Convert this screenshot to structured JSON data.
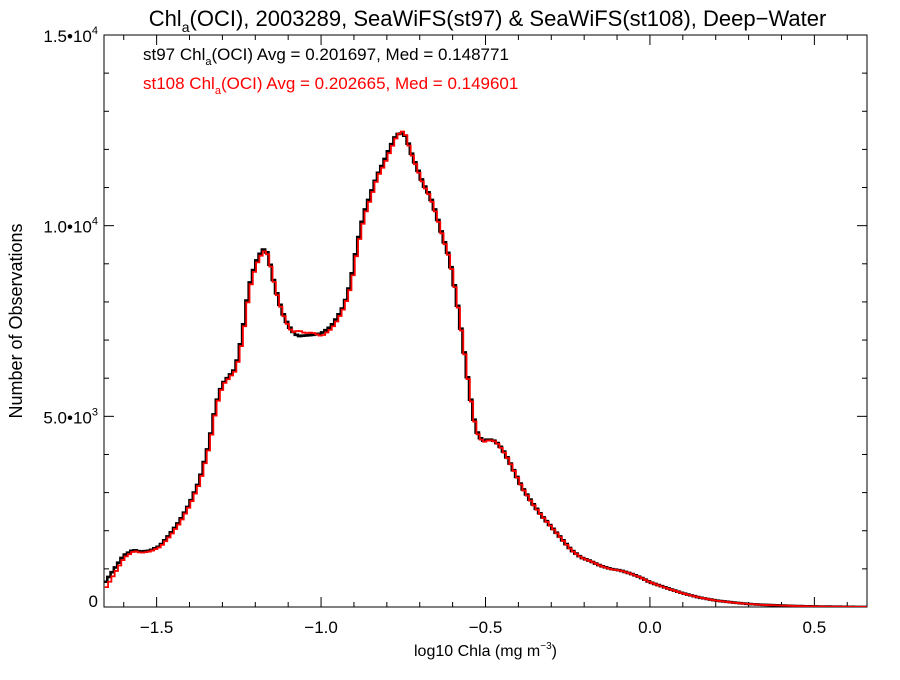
{
  "chart_data": {
    "type": "line",
    "style": "step histogram",
    "title": {
      "prefix": "Chl",
      "subscript": "a",
      "suffix": "(OCI), 2003289, SeaWiFS(st97) & SeaWiFS(st108), Deep−Water"
    },
    "xlabel": {
      "prefix": "log10 Chla (mg m",
      "superscript": "−3",
      "suffix": ")"
    },
    "ylabel": "Number of Observations",
    "xlim": [
      -1.66,
      0.66
    ],
    "ylim": [
      0,
      15000
    ],
    "x_ticks": [
      {
        "value": -1.5,
        "label": "−1.5"
      },
      {
        "value": -1.0,
        "label": "−1.0"
      },
      {
        "value": -0.5,
        "label": "−0.5"
      },
      {
        "value": 0.0,
        "label": "0.0"
      },
      {
        "value": 0.5,
        "label": "0.5"
      }
    ],
    "y_ticks": [
      {
        "value": 0,
        "mantissa": "0",
        "exponent": ""
      },
      {
        "value": 5000,
        "mantissa": "5.0•10",
        "exponent": "3"
      },
      {
        "value": 10000,
        "mantissa": "1.0•10",
        "exponent": "4"
      },
      {
        "value": 15000,
        "mantissa": "1.5•10",
        "exponent": "4"
      }
    ],
    "x_minor_step": 0.1,
    "y_minor_step": 1000,
    "grid": false,
    "legend_placement": "top-left",
    "annotations": [
      {
        "color": "#000000",
        "prefix": "st97 Chl",
        "subscript": "a",
        "suffix": "(OCI) Avg = 0.201697, Med = 0.148771"
      },
      {
        "color": "#ff0000",
        "prefix": "st108 Chl",
        "subscript": "a",
        "suffix": "(OCI) Avg = 0.202665, Med = 0.149601"
      }
    ],
    "bin_width": 0.01,
    "x": [
      -1.66,
      -1.6,
      -1.57,
      -1.55,
      -1.52,
      -1.49,
      -1.46,
      -1.43,
      -1.4,
      -1.37,
      -1.34,
      -1.32,
      -1.3,
      -1.28,
      -1.26,
      -1.24,
      -1.22,
      -1.2,
      -1.18,
      -1.17,
      -1.16,
      -1.15,
      -1.13,
      -1.11,
      -1.09,
      -1.07,
      -1.05,
      -1.03,
      -1.0,
      -0.97,
      -0.95,
      -0.93,
      -0.91,
      -0.89,
      -0.87,
      -0.85,
      -0.83,
      -0.81,
      -0.79,
      -0.77,
      -0.75,
      -0.74,
      -0.73,
      -0.71,
      -0.69,
      -0.67,
      -0.65,
      -0.63,
      -0.61,
      -0.59,
      -0.57,
      -0.55,
      -0.53,
      -0.51,
      -0.49,
      -0.47,
      -0.45,
      -0.43,
      -0.41,
      -0.39,
      -0.36,
      -0.33,
      -0.3,
      -0.27,
      -0.24,
      -0.21,
      -0.18,
      -0.15,
      -0.12,
      -0.09,
      -0.06,
      -0.03,
      0.0,
      0.05,
      0.1,
      0.15,
      0.2,
      0.25,
      0.3,
      0.35,
      0.4,
      0.45,
      0.5,
      0.55,
      0.6,
      0.66
    ],
    "series": [
      {
        "name": "st97",
        "color": "#000000",
        "values": [
          600,
          1350,
          1500,
          1450,
          1480,
          1600,
          1900,
          2250,
          2700,
          3300,
          4300,
          5300,
          5850,
          6050,
          6250,
          7100,
          8350,
          9000,
          9350,
          9400,
          9200,
          8750,
          8050,
          7550,
          7250,
          7100,
          7120,
          7130,
          7170,
          7350,
          7600,
          7900,
          8500,
          9500,
          10300,
          10800,
          11300,
          11650,
          12050,
          12400,
          12420,
          12300,
          12000,
          11550,
          11100,
          10800,
          10300,
          9700,
          9150,
          8200,
          7000,
          5700,
          4650,
          4350,
          4400,
          4350,
          4150,
          3850,
          3500,
          3150,
          2750,
          2400,
          2100,
          1800,
          1500,
          1300,
          1200,
          1080,
          1000,
          960,
          880,
          780,
          650,
          500,
          360,
          250,
          170,
          120,
          80,
          55,
          40,
          25,
          15,
          10,
          5,
          0
        ]
      },
      {
        "name": "st108",
        "color": "#ff0000",
        "values": [
          450,
          1300,
          1470,
          1420,
          1460,
          1580,
          1870,
          2220,
          2680,
          3270,
          4270,
          5270,
          5830,
          6020,
          6220,
          7050,
          8300,
          8950,
          9300,
          9350,
          9150,
          8700,
          8000,
          7500,
          7200,
          7250,
          7180,
          7200,
          7100,
          7300,
          7550,
          7880,
          8450,
          9450,
          10250,
          10750,
          11280,
          11600,
          12000,
          12380,
          12500,
          12250,
          11950,
          11500,
          11050,
          10750,
          10250,
          9650,
          9100,
          8150,
          6950,
          5650,
          4600,
          4320,
          4380,
          4330,
          4120,
          3830,
          3480,
          3120,
          2720,
          2380,
          2080,
          1780,
          1480,
          1290,
          1190,
          1070,
          990,
          950,
          870,
          770,
          640,
          490,
          350,
          245,
          165,
          115,
          78,
          52,
          38,
          24,
          14,
          9,
          5,
          0
        ]
      }
    ]
  }
}
